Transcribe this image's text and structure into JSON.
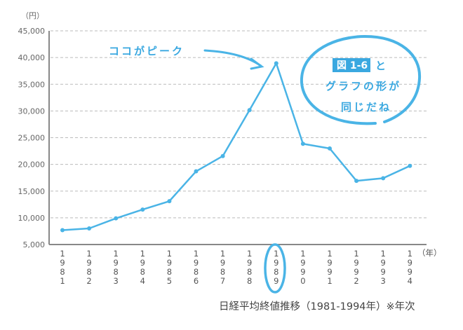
{
  "chart_data": {
    "type": "line",
    "y_unit_label": "（円）",
    "x_unit_label": "（年）",
    "categories": [
      "1981",
      "1982",
      "1983",
      "1984",
      "1985",
      "1986",
      "1987",
      "1988",
      "1989",
      "1990",
      "1991",
      "1992",
      "1993",
      "1994"
    ],
    "values": [
      7681,
      8016,
      9894,
      11543,
      13113,
      18701,
      21564,
      30159,
      38916,
      23849,
      22984,
      16925,
      17417,
      19723
    ],
    "ylim": [
      5000,
      45000
    ],
    "yticks": [
      "5,000",
      "10,000",
      "15,000",
      "20,000",
      "25,000",
      "30,000",
      "35,000",
      "40,000",
      "45,000"
    ],
    "grid": "horizontal dashed",
    "caption": "日経平均終値推移（1981-1994年）※年次",
    "line_color": "#4ab4e6",
    "annotations": {
      "peak_label": "ココがピーク",
      "highlight_year": "1989",
      "bubble_badge": "図 1-6",
      "bubble_line1": "と",
      "bubble_line2": "グラフの形が",
      "bubble_line3": "同じだね"
    }
  }
}
